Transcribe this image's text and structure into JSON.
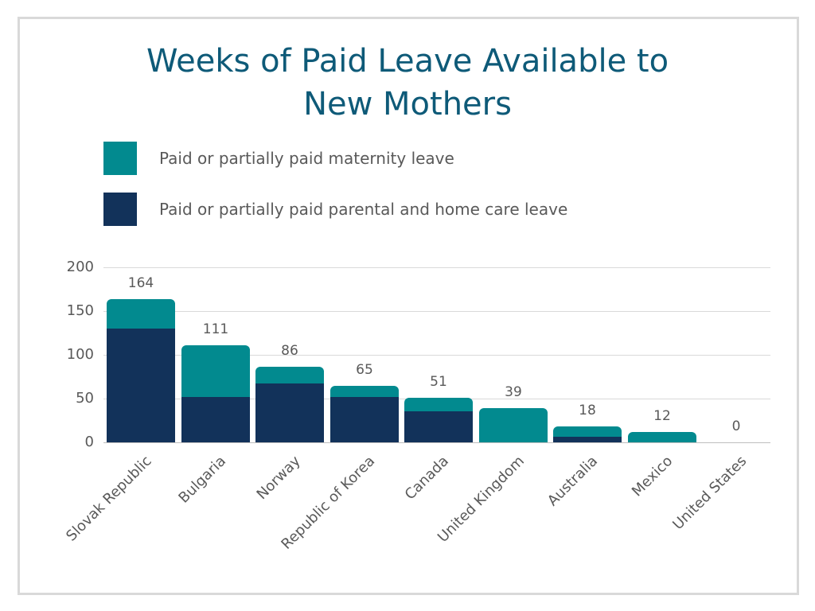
{
  "title_line1": "Weeks of Paid Leave Available to",
  "title_line2": "New Mothers",
  "colors": {
    "maternity": "#028a8f",
    "parental": "#12325a",
    "title": "#0e5a78",
    "text": "#595959",
    "grid": "#d9d9d9"
  },
  "legend": [
    {
      "label": "Paid or partially paid maternity leave",
      "color": "#028a8f"
    },
    {
      "label": "Paid or partially paid parental and home care leave",
      "color": "#12325a"
    }
  ],
  "yticks": [
    "200",
    "150",
    "100",
    "50",
    "0"
  ],
  "chart_data": {
    "type": "bar",
    "stacked": true,
    "title": "Weeks of Paid Leave Available to New Mothers",
    "xlabel": "",
    "ylabel": "",
    "ylim": [
      0,
      200
    ],
    "grid": true,
    "legend_position": "top",
    "categories": [
      "Slovak Republic",
      "Bulgaria",
      "Norway",
      "Republic of Korea",
      "Canada",
      "United Kingdom",
      "Australia",
      "Mexico",
      "United States"
    ],
    "series": [
      {
        "name": "Paid or partially paid parental and home care leave",
        "values": [
          130,
          52,
          67,
          52,
          35,
          0,
          6,
          0,
          0
        ]
      },
      {
        "name": "Paid or partially paid maternity leave",
        "values": [
          34,
          59,
          19,
          13,
          16,
          39,
          12,
          12,
          0
        ]
      }
    ],
    "totals": [
      164,
      111,
      86,
      65,
      51,
      39,
      18,
      12,
      0
    ]
  },
  "bars": [
    {
      "label": "Slovak Republic",
      "total": "164"
    },
    {
      "label": "Bulgaria",
      "total": "111"
    },
    {
      "label": "Norway",
      "total": "86"
    },
    {
      "label": "Republic of Korea",
      "total": "65"
    },
    {
      "label": "Canada",
      "total": "51"
    },
    {
      "label": "United Kingdom",
      "total": "39"
    },
    {
      "label": "Australia",
      "total": "18"
    },
    {
      "label": "Mexico",
      "total": "12"
    },
    {
      "label": "United States",
      "total": "0"
    }
  ]
}
